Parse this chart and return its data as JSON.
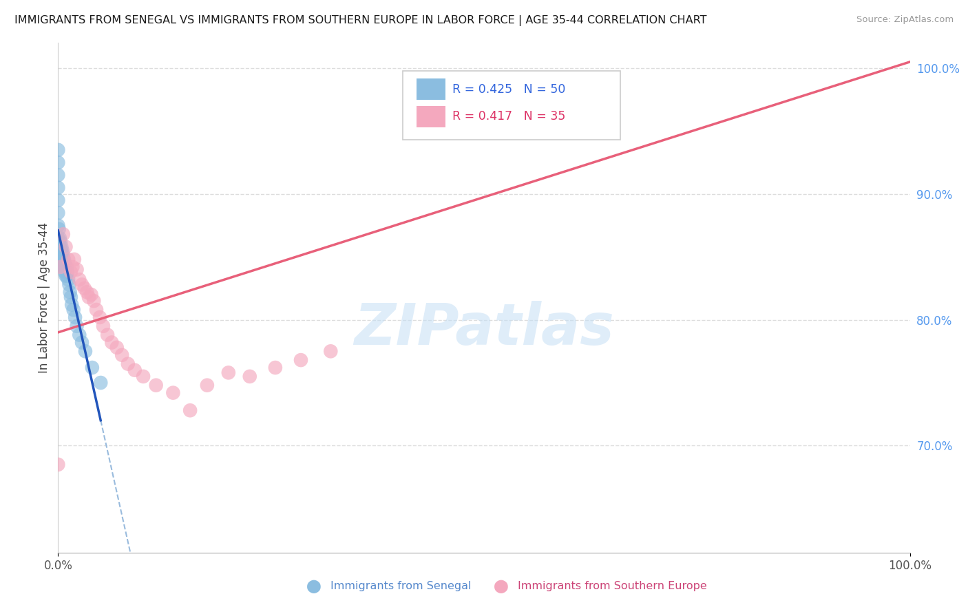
{
  "title": "IMMIGRANTS FROM SENEGAL VS IMMIGRANTS FROM SOUTHERN EUROPE IN LABOR FORCE | AGE 35-44 CORRELATION CHART",
  "source": "Source: ZipAtlas.com",
  "ylabel": "In Labor Force | Age 35-44",
  "r_senegal": 0.425,
  "n_senegal": 50,
  "r_southern_europe": 0.417,
  "n_southern_europe": 35,
  "color_senegal": "#8bbde0",
  "color_southern_europe": "#f4a8be",
  "trendline_senegal_solid": "#2255bb",
  "trendline_senegal_dashed": "#99bbdd",
  "trendline_southern_europe": "#e8607a",
  "background_color": "#ffffff",
  "grid_color": "#dddddd",
  "xlim": [
    0.0,
    1.0
  ],
  "ylim": [
    0.615,
    1.02
  ],
  "right_yticks": [
    1.0,
    0.9,
    0.8,
    0.7
  ],
  "right_yticklabels": [
    "100.0%",
    "90.0%",
    "80.0%",
    "70.0%"
  ],
  "senegal_x": [
    0.0,
    0.0,
    0.0,
    0.0,
    0.0,
    0.0,
    0.0,
    0.0,
    0.0,
    0.0,
    0.001,
    0.001,
    0.001,
    0.001,
    0.002,
    0.002,
    0.002,
    0.003,
    0.003,
    0.003,
    0.004,
    0.004,
    0.004,
    0.005,
    0.005,
    0.005,
    0.006,
    0.006,
    0.007,
    0.007,
    0.008,
    0.008,
    0.009,
    0.009,
    0.01,
    0.01,
    0.011,
    0.012,
    0.013,
    0.014,
    0.015,
    0.016,
    0.018,
    0.02,
    0.022,
    0.025,
    0.028,
    0.032,
    0.04,
    0.05
  ],
  "senegal_y": [
    0.935,
    0.925,
    0.915,
    0.905,
    0.895,
    0.885,
    0.875,
    0.865,
    0.855,
    0.845,
    0.872,
    0.862,
    0.855,
    0.848,
    0.865,
    0.858,
    0.852,
    0.862,
    0.855,
    0.848,
    0.858,
    0.852,
    0.845,
    0.855,
    0.848,
    0.842,
    0.852,
    0.845,
    0.848,
    0.842,
    0.845,
    0.838,
    0.842,
    0.835,
    0.842,
    0.835,
    0.838,
    0.832,
    0.828,
    0.822,
    0.818,
    0.812,
    0.808,
    0.802,
    0.795,
    0.788,
    0.782,
    0.775,
    0.762,
    0.75
  ],
  "southern_europe_x": [
    0.0,
    0.003,
    0.006,
    0.009,
    0.012,
    0.015,
    0.017,
    0.019,
    0.022,
    0.025,
    0.028,
    0.031,
    0.034,
    0.036,
    0.039,
    0.042,
    0.045,
    0.049,
    0.053,
    0.058,
    0.063,
    0.069,
    0.075,
    0.082,
    0.09,
    0.1,
    0.115,
    0.135,
    0.155,
    0.175,
    0.2,
    0.225,
    0.255,
    0.285,
    0.32
  ],
  "southern_europe_y": [
    0.685,
    0.842,
    0.868,
    0.858,
    0.848,
    0.838,
    0.842,
    0.848,
    0.84,
    0.832,
    0.828,
    0.825,
    0.822,
    0.818,
    0.82,
    0.815,
    0.808,
    0.802,
    0.795,
    0.788,
    0.782,
    0.778,
    0.772,
    0.765,
    0.76,
    0.755,
    0.748,
    0.742,
    0.728,
    0.748,
    0.758,
    0.755,
    0.762,
    0.768,
    0.775
  ],
  "senegal_trendline_x0": 0.0,
  "senegal_trendline_x1": 0.05,
  "southern_europe_trendline_x0": 0.0,
  "southern_europe_trendline_x1": 1.0,
  "southern_europe_trendline_y0": 0.79,
  "southern_europe_trendline_y1": 1.005
}
